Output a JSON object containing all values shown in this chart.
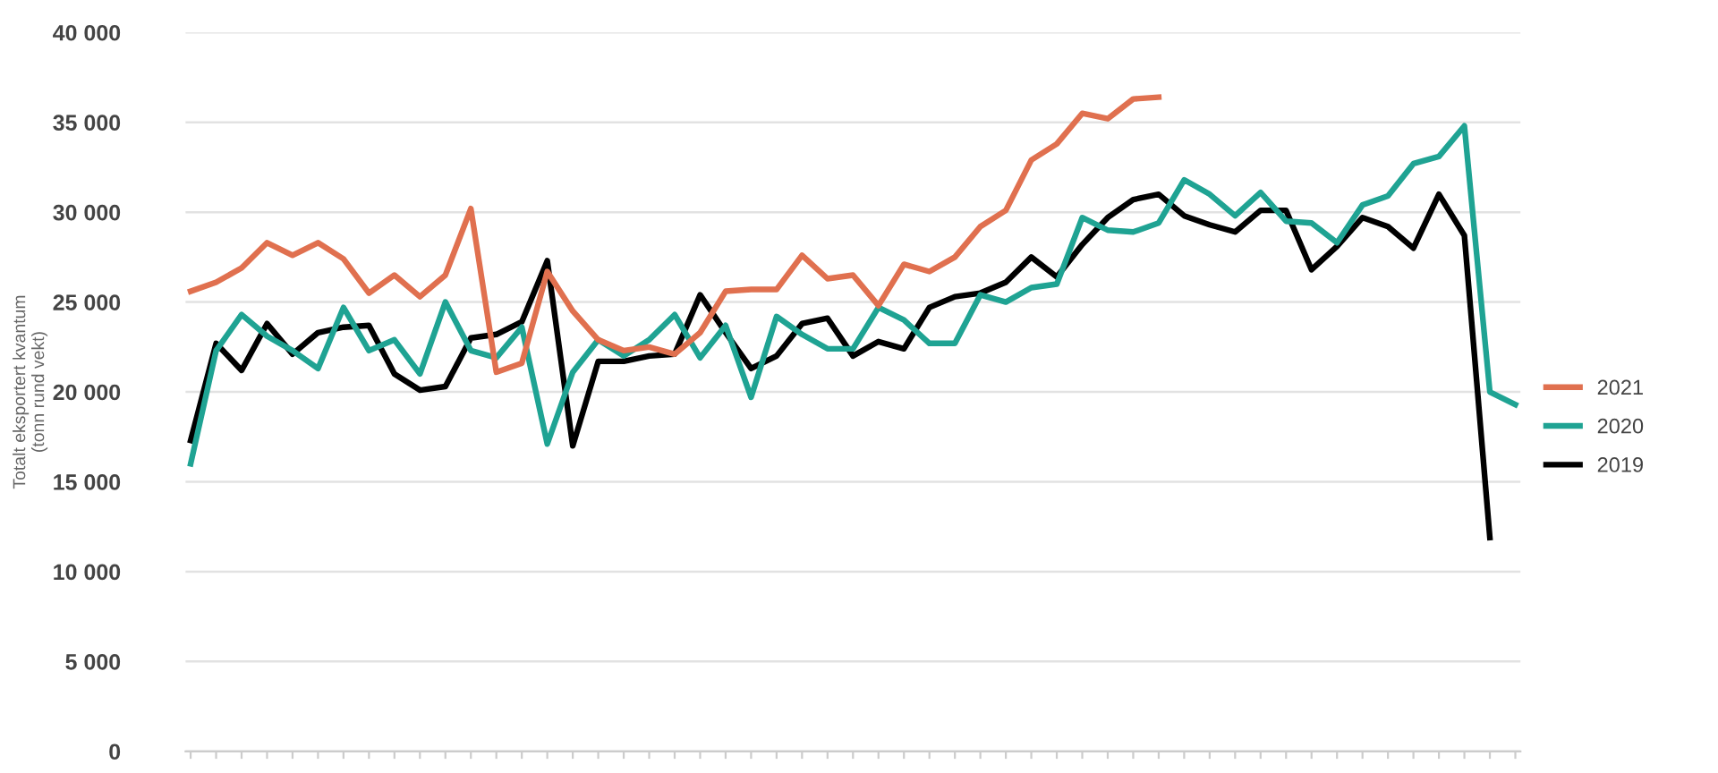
{
  "chart_data": {
    "type": "line",
    "ylabel": "Totalt eksportert kvantum\n(tonn rund vekt)",
    "categories": [
      null,
      null,
      null,
      null,
      null,
      null,
      null,
      null,
      null,
      null,
      null,
      null,
      null,
      null,
      null,
      null,
      null,
      null,
      null,
      null,
      null,
      null,
      null,
      null,
      null,
      null,
      null,
      null,
      null,
      null,
      null,
      null,
      null,
      null,
      null,
      null,
      null,
      null,
      null,
      null,
      null,
      null,
      null,
      null,
      null,
      null,
      null,
      null,
      null,
      null,
      null,
      null,
      null
    ],
    "series": [
      {
        "name": "2021",
        "color": "#e0704f",
        "values": [
          25600,
          26100,
          26900,
          28300,
          27600,
          28300,
          27400,
          25500,
          26500,
          25300,
          26500,
          30200,
          21100,
          21600,
          26700,
          24500,
          22900,
          22300,
          22500,
          22100,
          23300,
          25600,
          25700,
          25700,
          27600,
          26300,
          26500,
          24800,
          27100,
          26700,
          27500,
          29200,
          30100,
          32900,
          33800,
          35500,
          35200,
          36300,
          36400,
          null,
          null,
          null,
          null,
          null,
          null,
          null,
          null,
          null,
          null,
          null,
          null,
          null,
          null
        ]
      },
      {
        "name": "2020",
        "color": "#1fa393",
        "values": [
          16000,
          22300,
          24300,
          23100,
          22300,
          21300,
          24700,
          22300,
          22900,
          21000,
          25000,
          22300,
          21900,
          23600,
          17100,
          21100,
          22900,
          22000,
          22900,
          24300,
          21900,
          23700,
          19700,
          24200,
          23200,
          22400,
          22400,
          24700,
          24000,
          22700,
          22700,
          25400,
          25000,
          25800,
          26000,
          29700,
          29000,
          28900,
          29400,
          31800,
          31000,
          29800,
          31100,
          29500,
          29400,
          28300,
          30400,
          30900,
          32700,
          33100,
          34800,
          20000,
          19300
        ]
      },
      {
        "name": "2019",
        "color": "#000000",
        "values": [
          17300,
          22700,
          21200,
          23800,
          22100,
          23300,
          23600,
          23700,
          21000,
          20100,
          20300,
          23000,
          23200,
          23900,
          27300,
          17000,
          21700,
          21700,
          22000,
          22100,
          25400,
          23300,
          21300,
          22000,
          23800,
          24100,
          22000,
          22800,
          22400,
          24700,
          25300,
          25500,
          26100,
          27500,
          26400,
          28200,
          29700,
          30700,
          31000,
          29800,
          29300,
          28900,
          30100,
          30100,
          26800,
          28100,
          29700,
          29200,
          28000,
          31000,
          28700,
          11900,
          null
        ]
      }
    ],
    "ylim": [
      0,
      40000
    ],
    "yticks": [
      0,
      {
        "value": 5000,
        "label": "5 000"
      },
      {
        "value": 10000,
        "label": "10 000"
      },
      {
        "value": 15000,
        "label": "15 000"
      },
      {
        "value": 20000,
        "label": "20 000"
      },
      {
        "value": 25000,
        "label": "25 000"
      },
      {
        "value": 30000,
        "label": "30 000"
      },
      {
        "value": 35000,
        "label": "35 000"
      },
      {
        "value": 40000,
        "label": "40 000"
      }
    ],
    "grid": "y",
    "legend": "right",
    "marker": "none",
    "line_style": "solid"
  }
}
